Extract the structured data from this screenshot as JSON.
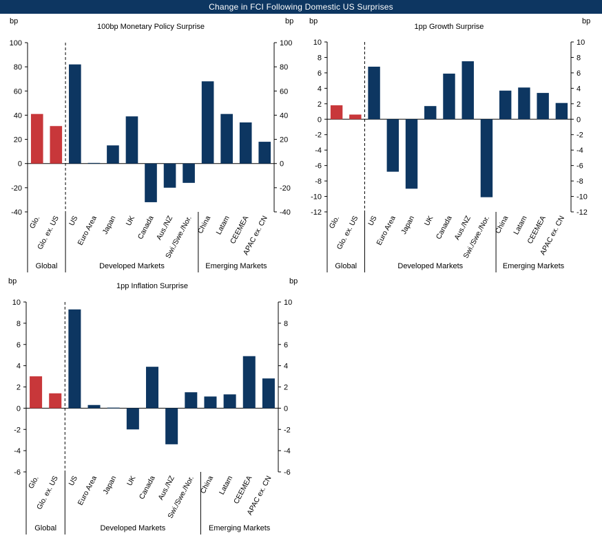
{
  "header": {
    "title": "Change in FCI Following Domestic US Surprises"
  },
  "colors": {
    "banner": "#0d3661",
    "global_bar": "#c8373a",
    "market_bar": "#0d3661"
  },
  "group_labels": {
    "global": "Global",
    "developed": "Developed Markets",
    "emerging": "Emerging Markets"
  },
  "chart_data": [
    {
      "type": "bar",
      "title": "100bp Monetary Policy Surprise",
      "ylabel_left": "bp",
      "ylabel_right": "bp",
      "ylim": [
        -40,
        100
      ],
      "yticks": [
        -40,
        -20,
        0,
        20,
        40,
        60,
        80,
        100
      ],
      "categories": [
        "Glo.",
        "Glo. ex. US",
        "US",
        "Euro Area",
        "Japan",
        "UK",
        "Canada",
        "Aus./NZ",
        "Swi./Swe./Nor.",
        "China",
        "Latam",
        "CEEMEA",
        "APAC ex. CN"
      ],
      "groups": [
        "global",
        "global",
        "developed",
        "developed",
        "developed",
        "developed",
        "developed",
        "developed",
        "developed",
        "emerging",
        "emerging",
        "emerging",
        "emerging"
      ],
      "values": [
        41,
        31,
        82,
        0.5,
        15,
        39,
        -32,
        -20,
        -16,
        68,
        41,
        34,
        18
      ]
    },
    {
      "type": "bar",
      "title": "1pp Growth Surprise",
      "ylabel_left": "bp",
      "ylabel_right": "bp",
      "ylim": [
        -12,
        10
      ],
      "yticks": [
        -12,
        -10,
        -8,
        -6,
        -4,
        -2,
        0,
        2,
        4,
        6,
        8,
        10
      ],
      "categories": [
        "Glo.",
        "Glo. ex. US",
        "US",
        "Euro Area",
        "Japan",
        "UK",
        "Canada",
        "Aus./NZ",
        "Swi./Swe./Nor.",
        "China",
        "Latam",
        "CEEMEA",
        "APAC ex. CN"
      ],
      "groups": [
        "global",
        "global",
        "developed",
        "developed",
        "developed",
        "developed",
        "developed",
        "developed",
        "developed",
        "emerging",
        "emerging",
        "emerging",
        "emerging"
      ],
      "values": [
        1.8,
        0.6,
        6.8,
        -6.8,
        -9.0,
        1.7,
        5.9,
        7.5,
        -10.1,
        3.7,
        4.1,
        3.4,
        2.1
      ]
    },
    {
      "type": "bar",
      "title": "1pp Inflation Surprise",
      "ylabel_left": "bp",
      "ylabel_right": "bp",
      "ylim": [
        -6,
        10
      ],
      "yticks": [
        -6,
        -4,
        -2,
        0,
        2,
        4,
        6,
        8,
        10
      ],
      "categories": [
        "Glo.",
        "Glo. ex. US",
        "US",
        "Euro Area",
        "Japan",
        "UK",
        "Canada",
        "Aus./NZ",
        "Swi./Swe./Nor.",
        "China",
        "Latam",
        "CEEMEA",
        "APAC ex. CN"
      ],
      "groups": [
        "global",
        "global",
        "developed",
        "developed",
        "developed",
        "developed",
        "developed",
        "developed",
        "developed",
        "emerging",
        "emerging",
        "emerging",
        "emerging"
      ],
      "values": [
        3.0,
        1.4,
        9.3,
        0.3,
        0.05,
        -2.0,
        3.9,
        -3.4,
        1.5,
        1.1,
        1.3,
        4.9,
        2.8
      ]
    }
  ]
}
